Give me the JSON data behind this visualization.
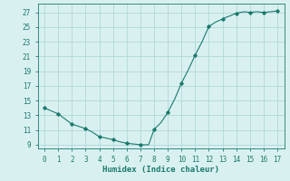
{
  "title": "",
  "xlabel": "Humidex (Indice chaleur)",
  "x_values": [
    0,
    0.5,
    1,
    1.5,
    2,
    2.5,
    3,
    3.5,
    4,
    4.5,
    5,
    5.5,
    6,
    6.5,
    7,
    7.3,
    7.6,
    8,
    8.5,
    9,
    9.5,
    10,
    10.5,
    11,
    11.5,
    12,
    12.5,
    13,
    13.2,
    13.5,
    14,
    14.3,
    14.6,
    15,
    15.5,
    16,
    16.5,
    17
  ],
  "y_values": [
    14.0,
    13.6,
    13.2,
    12.5,
    11.8,
    11.5,
    11.2,
    10.7,
    10.1,
    9.9,
    9.7,
    9.4,
    9.2,
    9.1,
    9.0,
    9.0,
    9.0,
    11.1,
    12.0,
    13.4,
    15.2,
    17.4,
    19.2,
    21.2,
    23.0,
    25.1,
    25.7,
    26.1,
    26.3,
    26.5,
    26.9,
    27.0,
    27.1,
    27.0,
    27.1,
    27.0,
    27.1,
    27.2
  ],
  "marker_x": [
    0,
    1,
    2,
    3,
    4,
    5,
    6,
    7,
    8,
    9,
    10,
    11,
    12,
    13,
    14,
    15,
    16,
    17
  ],
  "marker_y": [
    14.0,
    13.2,
    11.8,
    11.2,
    10.1,
    9.7,
    9.2,
    9.0,
    11.1,
    13.4,
    17.4,
    21.2,
    25.1,
    26.1,
    26.9,
    27.0,
    27.0,
    27.2
  ],
  "line_color": "#1a7a6e",
  "marker_color": "#1a7a6e",
  "bg_color": "#d9f0f0",
  "grid_color": "#b0d8d8",
  "tick_color": "#1a7a6e",
  "label_color": "#1a7a6e",
  "xlim": [
    -0.5,
    17.5
  ],
  "ylim": [
    8.5,
    28.2
  ],
  "yticks": [
    9,
    11,
    13,
    15,
    17,
    19,
    21,
    23,
    25,
    27
  ],
  "xticks": [
    0,
    1,
    2,
    3,
    4,
    5,
    6,
    7,
    8,
    9,
    10,
    11,
    12,
    13,
    14,
    15,
    16,
    17
  ],
  "tick_fontsize": 5.5,
  "xlabel_fontsize": 6.5
}
